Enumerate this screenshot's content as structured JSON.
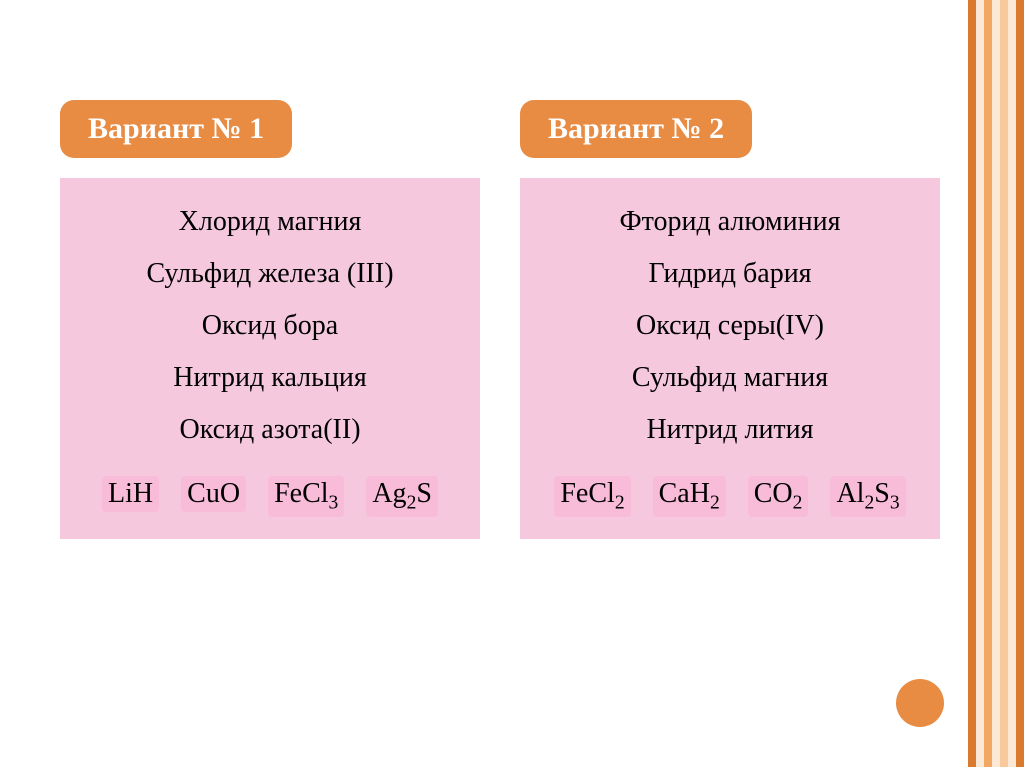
{
  "colors": {
    "badge_bg": "#e88b43",
    "list_bg": "#f5c8de",
    "formula_highlight": "#f9bcd8",
    "circle": "#e88b43",
    "stripe_dark": "#d97a2e",
    "stripe_mid": "#f0a862",
    "stripe_light": "#f8c99a",
    "stripe_pale": "#fce8d4",
    "text_light": "#ffffff",
    "text_dark": "#000000"
  },
  "variant1": {
    "title": "Вариант № 1",
    "items": [
      "Хлорид магния",
      "Сульфид железа (III)",
      "Оксид бора",
      "Нитрид кальция",
      "Оксид азота(II)"
    ],
    "formulas": [
      "LiH",
      "CuO",
      "FeCl₃",
      "Ag₂S"
    ]
  },
  "variant2": {
    "title": "Вариант № 2",
    "items": [
      "Фторид алюминия",
      "Гидрид бария",
      "Оксид серы(IV)",
      "Сульфид магния",
      "Нитрид лития"
    ],
    "formulas": [
      "FeCl₂",
      "CaH₂",
      "CO₂",
      "Al₂S₃"
    ]
  },
  "typography": {
    "badge_fontsize": 30,
    "compound_fontsize": 28,
    "formula_fontsize": 28
  }
}
